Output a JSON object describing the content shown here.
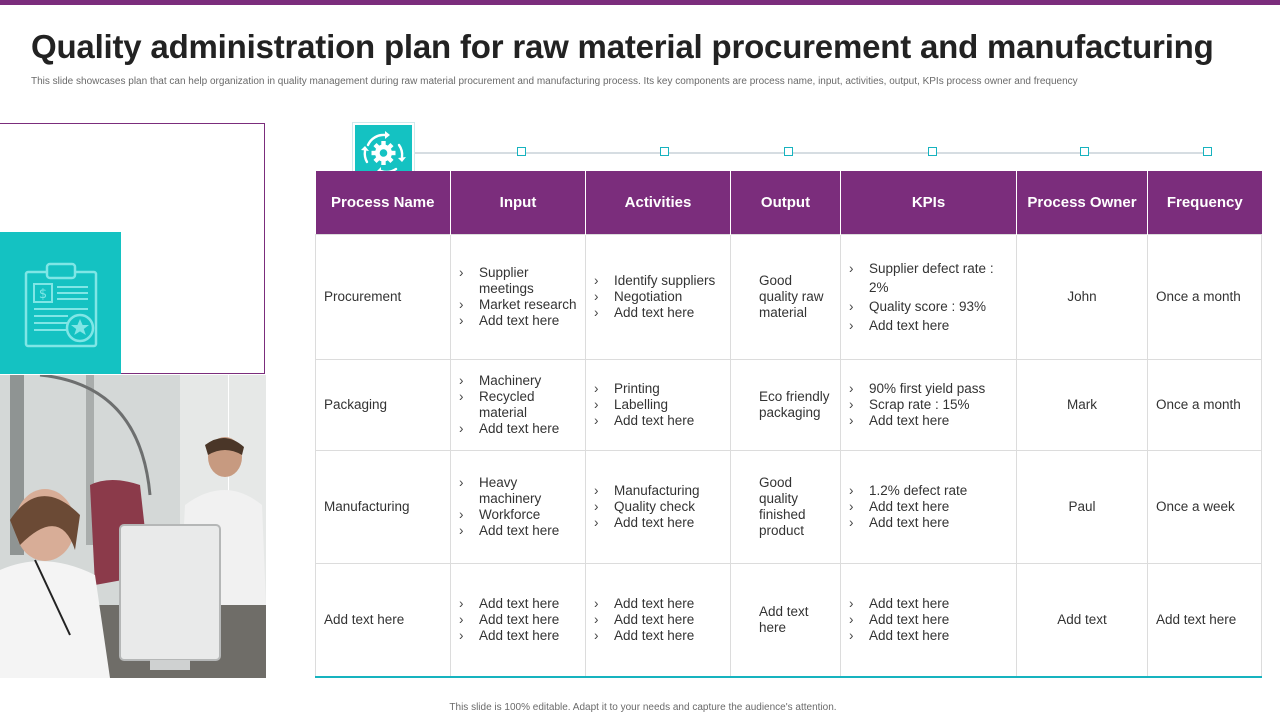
{
  "slide": {
    "title": "Quality administration plan for raw material procurement and manufacturing",
    "subtitle": "This slide showcases plan that can help organization in quality management  during raw material procurement and manufacturing process. Its key components are process name, input, activities, output, KPIs  process owner and frequency",
    "footer": "This slide is 100% editable.  Adapt it to your needs and capture the audience's attention."
  },
  "colors": {
    "accent": "#7b2d7c",
    "teal": "#14c2c2",
    "line": "#17b3bf"
  },
  "icons": {
    "gear": "gear-refresh-icon",
    "clipboard": "clipboard-dollar-icon"
  },
  "table": {
    "headers": [
      "Process Name",
      "Input",
      "Activities",
      "Output",
      "KPIs",
      "Process Owner",
      "Frequency"
    ],
    "rows": [
      {
        "name": "Procurement",
        "input": [
          "Supplier meetings",
          "Market research",
          "Add text here"
        ],
        "activities": [
          "Identify suppliers",
          "Negotiation",
          "Add text here"
        ],
        "output": "Good quality raw material",
        "kpis": [
          "Supplier defect rate : 2%",
          "Quality score : 93%",
          "Add text here"
        ],
        "owner": "John",
        "frequency": "Once a month"
      },
      {
        "name": "Packaging",
        "input": [
          "Machinery",
          "Recycled material",
          "Add text here"
        ],
        "activities": [
          "Printing",
          "Labelling",
          "Add text here"
        ],
        "output": "Eco friendly packaging",
        "kpis": [
          "90% first yield pass",
          "Scrap rate  : 15%",
          "Add text here"
        ],
        "owner": "Mark",
        "frequency": "Once a month"
      },
      {
        "name": "Manufacturing",
        "input": [
          "Heavy machinery",
          "Workforce",
          "Add text here"
        ],
        "activities": [
          "Manufacturing",
          "Quality check",
          "Add text here"
        ],
        "output": "Good quality finished product",
        "kpis": [
          "1.2% defect rate",
          "Add text here",
          "Add text here"
        ],
        "owner": "Paul",
        "frequency": "Once a week"
      },
      {
        "name": "Add text here",
        "input": [
          "Add text here",
          "Add text here",
          "Add text here"
        ],
        "activities": [
          "Add text here",
          "Add text here",
          "Add text here"
        ],
        "output": "Add text here",
        "kpis": [
          "Add text here",
          "Add text here",
          "Add text here"
        ],
        "owner": "Add text",
        "frequency": "Add text here"
      }
    ]
  }
}
